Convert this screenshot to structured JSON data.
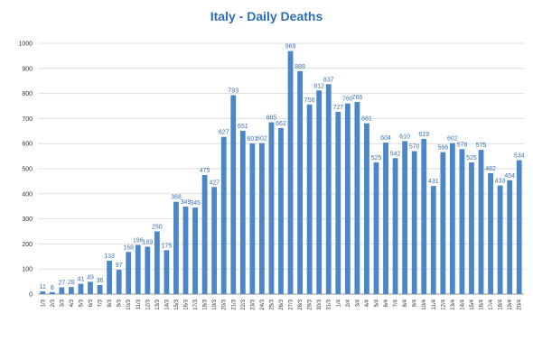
{
  "chart_data": {
    "type": "bar",
    "title": "Italy - Daily Deaths",
    "xlabel": "",
    "ylabel": "",
    "ylim": [
      0,
      1000
    ],
    "yticks": [
      0,
      100,
      200,
      300,
      400,
      500,
      600,
      700,
      800,
      900,
      1000
    ],
    "grid": true,
    "legend": "none",
    "bar_color": "#4a86c8",
    "categories": [
      "1/3",
      "2/3",
      "3/3",
      "4/3",
      "5/3",
      "6/3",
      "7/3",
      "8/3",
      "9/3",
      "10/3",
      "11/3",
      "12/3",
      "13/3",
      "14/3",
      "15/3",
      "16/3",
      "17/3",
      "18/3",
      "19/3",
      "20/3",
      "21/3",
      "22/3",
      "23/3",
      "24/3",
      "25/3",
      "26/3",
      "27/3",
      "28/3",
      "29/3",
      "30/3",
      "31/3",
      "1/4",
      "2/4",
      "3/4",
      "4/4",
      "5/4",
      "6/4",
      "7/4",
      "8/4",
      "9/4",
      "10/4",
      "11/4",
      "12/4",
      "13/4",
      "14/4",
      "15/4",
      "16/4",
      "17/4",
      "18/4",
      "19/4",
      "20/4"
    ],
    "values": [
      11,
      8,
      27,
      28,
      41,
      49,
      36,
      133,
      97,
      168,
      196,
      189,
      250,
      175,
      368,
      349,
      345,
      475,
      427,
      627,
      793,
      651,
      601,
      602,
      685,
      662,
      969,
      889,
      756,
      812,
      837,
      727,
      760,
      766,
      681,
      525,
      604,
      542,
      610,
      570,
      619,
      431,
      566,
      602,
      578,
      525,
      575,
      482,
      433,
      454,
      534
    ],
    "data_labels": [
      "11",
      "8",
      "27",
      "28",
      "41",
      "49",
      "36",
      "133",
      "97",
      "168",
      "196",
      "189",
      "250",
      "175",
      "368",
      "349",
      "345",
      "475",
      "427",
      "627",
      "793",
      "651",
      "601",
      "602",
      "685",
      "662",
      "969",
      "889",
      "756",
      "812",
      "837",
      "727",
      "760",
      "766",
      "681",
      "525",
      "604",
      "542",
      "610",
      "570",
      "619",
      "431",
      "566",
      "602",
      "578",
      "525",
      "575",
      "482",
      "433",
      "454",
      "534"
    ]
  }
}
